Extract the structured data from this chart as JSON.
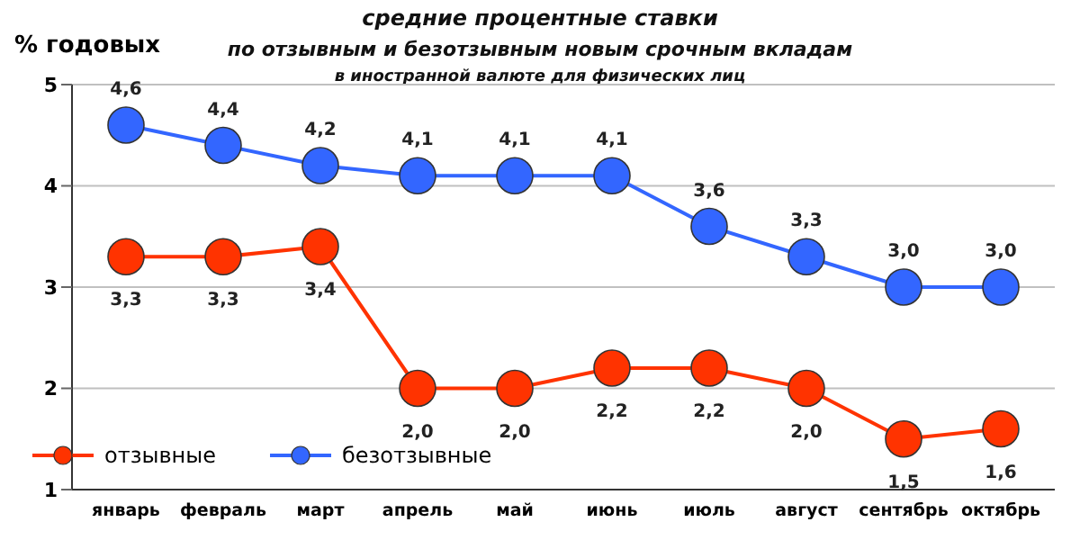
{
  "chart_data": {
    "type": "line",
    "title": "средние  процентные  ставки\nпо отзывным и безотзывным новым срочным вкладам",
    "subtitle": "в иностранной валюте для физических лиц",
    "ylabel": "% годовых",
    "categories": [
      "январь",
      "февраль",
      "март",
      "апрель",
      "май",
      "июнь",
      "июль",
      "август",
      "сентябрь",
      "октябрь"
    ],
    "series": [
      {
        "name": "отзывные",
        "color": "#ff3300",
        "values": [
          3.3,
          3.3,
          3.4,
          2.0,
          2.0,
          2.2,
          2.2,
          2.0,
          1.5,
          1.6
        ],
        "value_labels": [
          "3,3",
          "3,3",
          "3,4",
          "2,0",
          "2,0",
          "2,2",
          "2,2",
          "2,0",
          "1,5",
          "1,6"
        ]
      },
      {
        "name": "безотзывные",
        "color": "#3366ff",
        "values": [
          4.6,
          4.4,
          4.2,
          4.1,
          4.1,
          4.1,
          3.6,
          3.3,
          3.0,
          3.0
        ],
        "value_labels": [
          "4,6",
          "4,4",
          "4,2",
          "4,1",
          "4,1",
          "4,1",
          "3,6",
          "3,3",
          "3,0",
          "3,0"
        ]
      }
    ],
    "ylim": [
      1,
      5
    ],
    "yticks": [
      1,
      2,
      3,
      4,
      5
    ],
    "grid": "y",
    "legend": "bottom left",
    "marker": "circle",
    "line_style": "solid"
  }
}
